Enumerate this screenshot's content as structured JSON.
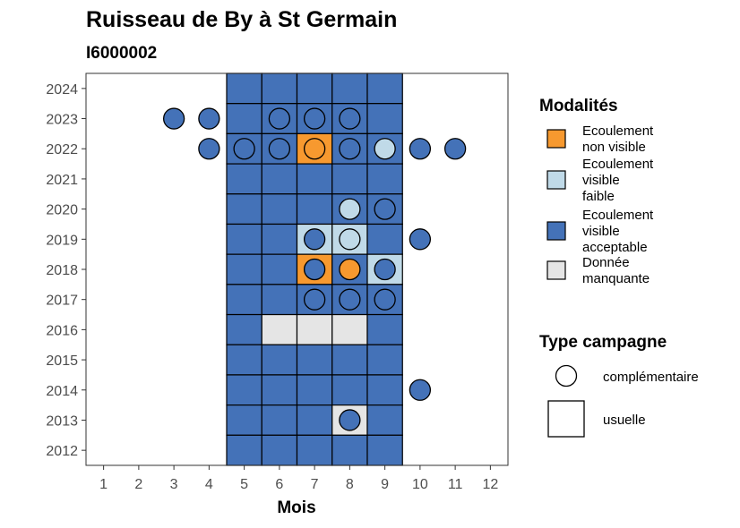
{
  "chart_data": {
    "type": "heatmap",
    "title": "Ruisseau de By à St Germain",
    "subtitle": "I6000002",
    "xlabel": "Mois",
    "ylabel": "",
    "x_ticks": [
      "1",
      "2",
      "3",
      "4",
      "5",
      "6",
      "7",
      "8",
      "9",
      "10",
      "11",
      "12"
    ],
    "y_ticks": [
      "2012",
      "2013",
      "2014",
      "2015",
      "2016",
      "2017",
      "2018",
      "2019",
      "2020",
      "2021",
      "2022",
      "2023",
      "2024"
    ],
    "xlim": [
      0.5,
      12.5
    ],
    "ylim": [
      2011.5,
      2024.5
    ],
    "grid": false,
    "colors": {
      "non_visible": "#F7992F",
      "faible": "#C0DAE8",
      "acceptable": "#4472B8",
      "manquante": "#E5E5E5"
    },
    "tiles": [
      {
        "year": 2024,
        "months": [
          "acceptable",
          "acceptable",
          "acceptable",
          "acceptable",
          "acceptable"
        ]
      },
      {
        "year": 2023,
        "months": [
          "acceptable",
          "acceptable",
          "acceptable",
          "acceptable",
          "acceptable"
        ]
      },
      {
        "year": 2022,
        "months": [
          "acceptable",
          "acceptable",
          "non_visible",
          "acceptable",
          "acceptable"
        ]
      },
      {
        "year": 2021,
        "months": [
          "acceptable",
          "acceptable",
          "acceptable",
          "acceptable",
          "acceptable"
        ]
      },
      {
        "year": 2020,
        "months": [
          "acceptable",
          "acceptable",
          "acceptable",
          "acceptable",
          "acceptable"
        ]
      },
      {
        "year": 2019,
        "months": [
          "acceptable",
          "acceptable",
          "faible",
          "faible",
          "acceptable"
        ]
      },
      {
        "year": 2018,
        "months": [
          "acceptable",
          "acceptable",
          "non_visible",
          "acceptable",
          "faible"
        ]
      },
      {
        "year": 2017,
        "months": [
          "acceptable",
          "acceptable",
          "acceptable",
          "acceptable",
          "acceptable"
        ]
      },
      {
        "year": 2016,
        "months": [
          "acceptable",
          "manquante",
          "manquante",
          "manquante",
          "acceptable"
        ]
      },
      {
        "year": 2015,
        "months": [
          "acceptable",
          "acceptable",
          "acceptable",
          "acceptable",
          "acceptable"
        ]
      },
      {
        "year": 2014,
        "months": [
          "acceptable",
          "acceptable",
          "acceptable",
          "acceptable",
          "acceptable"
        ]
      },
      {
        "year": 2013,
        "months": [
          "acceptable",
          "acceptable",
          "acceptable",
          "manquante",
          "acceptable"
        ]
      },
      {
        "year": 2012,
        "months": [
          "acceptable",
          "acceptable",
          "acceptable",
          "acceptable",
          "acceptable"
        ]
      }
    ],
    "tile_month_start": 5,
    "points": [
      {
        "year": 2023,
        "month": 3,
        "modalite": "acceptable"
      },
      {
        "year": 2023,
        "month": 4,
        "modalite": "acceptable"
      },
      {
        "year": 2023,
        "month": 6,
        "modalite": "acceptable"
      },
      {
        "year": 2023,
        "month": 7,
        "modalite": "acceptable"
      },
      {
        "year": 2023,
        "month": 8,
        "modalite": "acceptable"
      },
      {
        "year": 2022,
        "month": 4,
        "modalite": "acceptable"
      },
      {
        "year": 2022,
        "month": 5,
        "modalite": "acceptable"
      },
      {
        "year": 2022,
        "month": 6,
        "modalite": "acceptable"
      },
      {
        "year": 2022,
        "month": 7,
        "modalite": "non_visible"
      },
      {
        "year": 2022,
        "month": 8,
        "modalite": "acceptable"
      },
      {
        "year": 2022,
        "month": 9,
        "modalite": "faible"
      },
      {
        "year": 2022,
        "month": 10,
        "modalite": "acceptable"
      },
      {
        "year": 2022,
        "month": 11,
        "modalite": "acceptable"
      },
      {
        "year": 2020,
        "month": 8,
        "modalite": "faible"
      },
      {
        "year": 2020,
        "month": 9,
        "modalite": "acceptable"
      },
      {
        "year": 2019,
        "month": 7,
        "modalite": "acceptable"
      },
      {
        "year": 2019,
        "month": 8,
        "modalite": "faible"
      },
      {
        "year": 2019,
        "month": 10,
        "modalite": "acceptable"
      },
      {
        "year": 2018,
        "month": 7,
        "modalite": "acceptable"
      },
      {
        "year": 2018,
        "month": 8,
        "modalite": "non_visible"
      },
      {
        "year": 2018,
        "month": 9,
        "modalite": "acceptable"
      },
      {
        "year": 2017,
        "month": 7,
        "modalite": "acceptable"
      },
      {
        "year": 2017,
        "month": 8,
        "modalite": "acceptable"
      },
      {
        "year": 2017,
        "month": 9,
        "modalite": "acceptable"
      },
      {
        "year": 2014,
        "month": 10,
        "modalite": "acceptable"
      },
      {
        "year": 2013,
        "month": 8,
        "modalite": "acceptable"
      }
    ],
    "legend": {
      "placement": "right",
      "modalites_title": "Modalités",
      "modalites": [
        {
          "key": "non_visible",
          "lines": [
            "Ecoulement",
            "non visible"
          ]
        },
        {
          "key": "faible",
          "lines": [
            "Ecoulement",
            "visible",
            "faible"
          ]
        },
        {
          "key": "acceptable",
          "lines": [
            "Ecoulement",
            "visible",
            "acceptable"
          ]
        },
        {
          "key": "manquante",
          "lines": [
            "Donnée",
            "manquante"
          ]
        }
      ],
      "type_title": "Type campagne",
      "types": [
        {
          "shape": "circle",
          "label": "complémentaire"
        },
        {
          "shape": "square",
          "label": "usuelle"
        }
      ]
    }
  }
}
